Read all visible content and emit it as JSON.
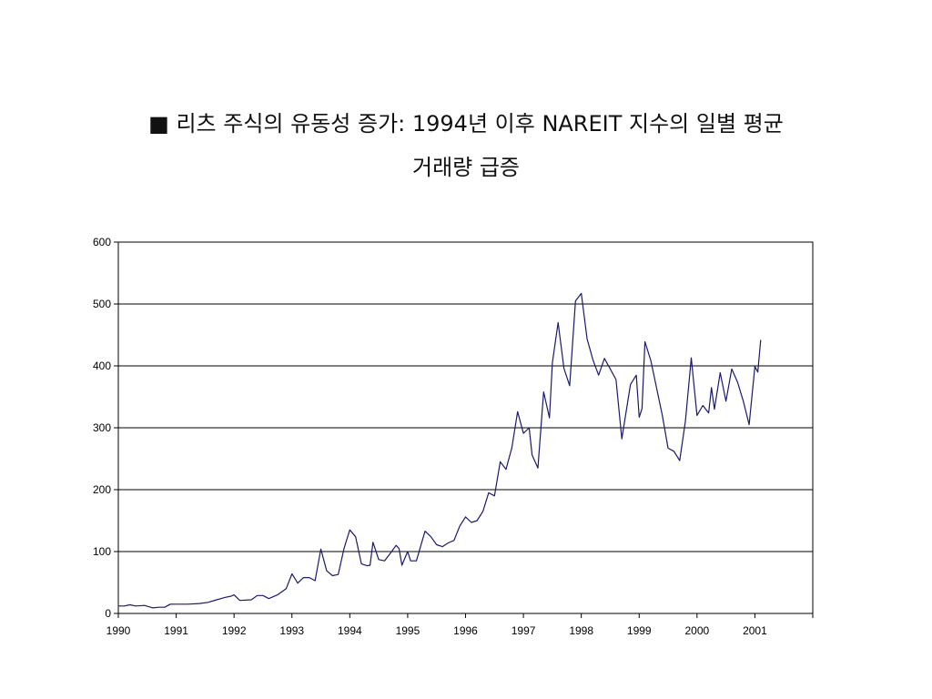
{
  "title": {
    "line1": "■ 리츠 주식의 유동성 증가:  1994년 이후 NAREIT 지수의 일별 평균",
    "line2": "거래량 급증"
  },
  "chart_data": {
    "type": "line",
    "title": "■ 리츠 주식의 유동성 증가:  1994년 이후 NAREIT 지수의 일별 평균 거래량 급증",
    "xlabel": "",
    "ylabel": "",
    "xlim": [
      1990,
      2002
    ],
    "ylim": [
      0,
      600
    ],
    "xticks": [
      "1990",
      "1991",
      "1992",
      "1993",
      "1994",
      "1995",
      "1996",
      "1997",
      "1998",
      "1999",
      "2000",
      "2001"
    ],
    "yticks": [
      "0",
      "100",
      "200",
      "300",
      "400",
      "500",
      "600"
    ],
    "grid": "horizontal",
    "legend": "none",
    "series": [
      {
        "color": "#1a1a6e",
        "x": [
          1990.0,
          1990.1,
          1990.2,
          1990.3,
          1990.45,
          1990.6,
          1990.7,
          1990.8,
          1990.9,
          1991.0,
          1991.2,
          1991.4,
          1991.55,
          1991.7,
          1991.85,
          1991.95,
          1992.0,
          1992.1,
          1992.3,
          1992.4,
          1992.5,
          1992.6,
          1992.75,
          1992.9,
          1993.0,
          1993.1,
          1993.2,
          1993.3,
          1993.4,
          1993.5,
          1993.6,
          1993.7,
          1993.8,
          1993.9,
          1994.0,
          1994.1,
          1994.2,
          1994.3,
          1994.35,
          1994.4,
          1994.5,
          1994.6,
          1994.7,
          1994.8,
          1994.85,
          1994.9,
          1995.0,
          1995.05,
          1995.15,
          1995.3,
          1995.4,
          1995.5,
          1995.6,
          1995.7,
          1995.8,
          1995.9,
          1996.0,
          1996.1,
          1996.2,
          1996.3,
          1996.4,
          1996.5,
          1996.6,
          1996.7,
          1996.8,
          1996.9,
          1997.0,
          1997.1,
          1997.15,
          1997.25,
          1997.35,
          1997.45,
          1997.5,
          1997.6,
          1997.7,
          1997.8,
          1997.9,
          1998.0,
          1998.1,
          1998.2,
          1998.3,
          1998.4,
          1998.5,
          1998.6,
          1998.7,
          1998.85,
          1998.95,
          1999.0,
          1999.05,
          1999.1,
          1999.2,
          1999.3,
          1999.4,
          1999.5,
          1999.6,
          1999.7,
          1999.8,
          1999.9,
          2000.0,
          2000.1,
          2000.2,
          2000.25,
          2000.3,
          2000.4,
          2000.5,
          2000.6,
          2000.7,
          2000.8,
          2000.9,
          2001.0,
          2001.05,
          2001.1
        ],
        "values": [
          12,
          12,
          14,
          12,
          13,
          9,
          10,
          10,
          15,
          15,
          15,
          16,
          18,
          22,
          26,
          28,
          30,
          21,
          22,
          29,
          29,
          24,
          30,
          40,
          64,
          49,
          58,
          58,
          53,
          104,
          69,
          61,
          63,
          105,
          135,
          124,
          80,
          77,
          78,
          115,
          87,
          85,
          97,
          110,
          105,
          78,
          100,
          85,
          85,
          133,
          124,
          111,
          108,
          114,
          118,
          141,
          156,
          147,
          150,
          165,
          195,
          190,
          245,
          233,
          268,
          326,
          291,
          300,
          256,
          235,
          358,
          316,
          405,
          470,
          396,
          368,
          505,
          517,
          444,
          410,
          385,
          412,
          395,
          378,
          282,
          370,
          385,
          317,
          331,
          439,
          409,
          365,
          320,
          267,
          262,
          247,
          311,
          413,
          320,
          336,
          324,
          365,
          330,
          389,
          343,
          395,
          374,
          343,
          305,
          399,
          390,
          442
        ]
      }
    ]
  }
}
